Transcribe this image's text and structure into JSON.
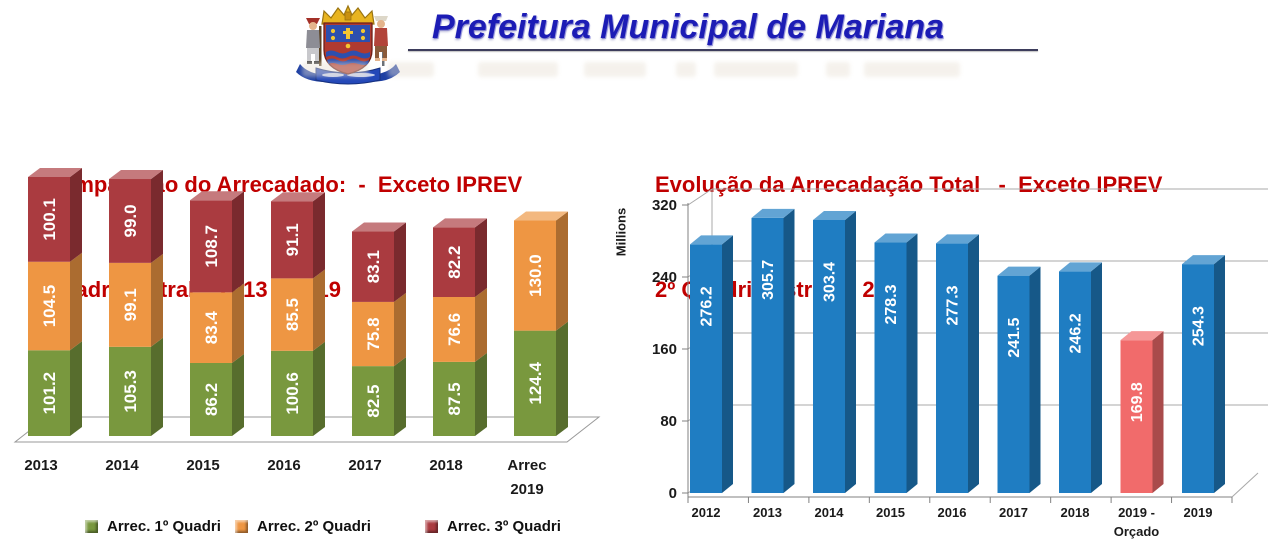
{
  "header": {
    "title": "Prefeitura Municipal de Mariana",
    "logo": "mariana-coat-of-arms",
    "title_color": "#1C1CB5"
  },
  "chart_data": [
    {
      "type": "bar",
      "variant": "3d-stacked-column",
      "title_line1": "Comparação do Arrecadado:  -  Exceto IPREV",
      "title_line2": "Quadrimestral – 2013 a 2019",
      "title_color": "#C00000",
      "categories": [
        "2013",
        "2014",
        "2015",
        "2016",
        "2017",
        "2018",
        "Arrec\n2019"
      ],
      "series": [
        {
          "name": "Arrec. 1º Quadri",
          "color": "#79983E",
          "values": [
            101.2,
            105.3,
            86.2,
            100.6,
            82.5,
            87.5,
            124.4
          ]
        },
        {
          "name": "Arrec. 2º Quadri",
          "color": "#EE9643",
          "values": [
            104.5,
            99.1,
            83.4,
            85.5,
            75.8,
            76.6,
            130.0
          ]
        },
        {
          "name": "Arrec. 3º Quadri",
          "color": "#AA3B40",
          "values": [
            100.1,
            99.0,
            108.7,
            91.1,
            83.1,
            82.2,
            null
          ]
        }
      ],
      "value_label_color": "#FFFFFF",
      "legend_position": "bottom",
      "grid": false
    },
    {
      "type": "bar",
      "variant": "3d-column",
      "title_line1": "Evolução da Arrecadação Total   -  Exceto IPREV",
      "title_line2": "2º Quadrimestre de 2019",
      "title_color": "#C00000",
      "ylabel": "Millions",
      "yticks": [
        0,
        80,
        160,
        240,
        320
      ],
      "ylim": [
        0,
        320
      ],
      "categories": [
        "2012",
        "2013",
        "2014",
        "2015",
        "2016",
        "2017",
        "2018",
        "2019 -\nOrçado",
        "2019"
      ],
      "values": [
        276.2,
        305.7,
        303.4,
        278.3,
        277.3,
        241.5,
        246.2,
        169.8,
        254.3
      ],
      "bar_color": "#1F7DC2",
      "highlight_index": 7,
      "highlight_color": "#F16B6B",
      "value_label_color": "#FFFFFF",
      "grid": true
    }
  ]
}
